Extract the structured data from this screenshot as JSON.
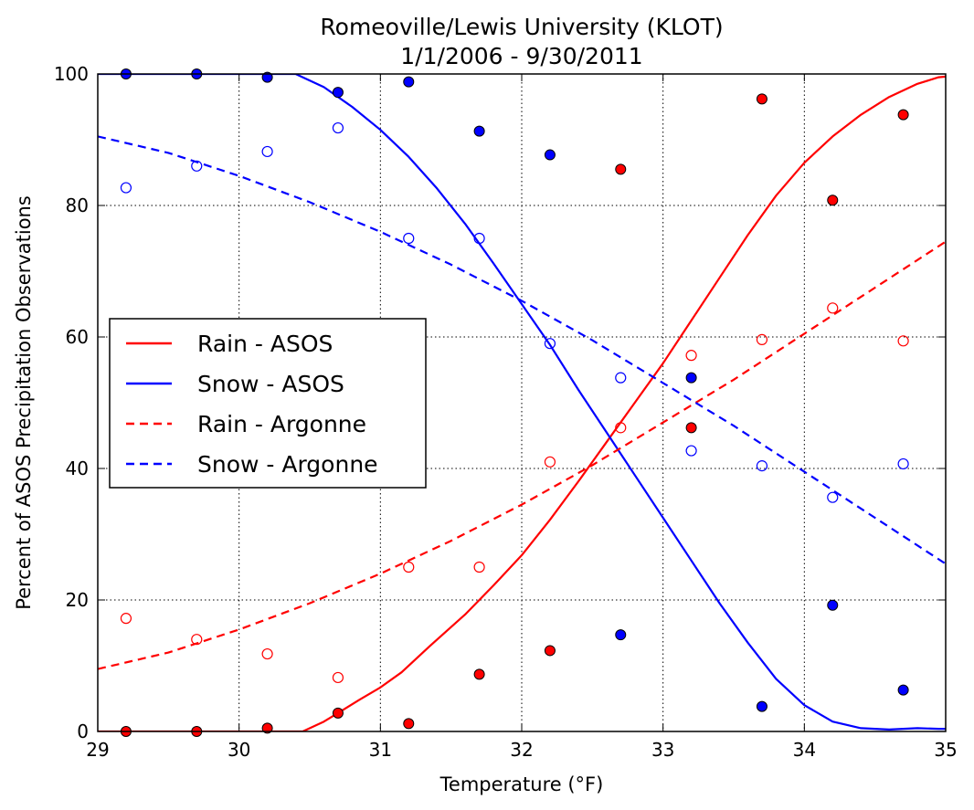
{
  "chart_data": {
    "type": "scatter",
    "title": "Romeoville/Lewis University (KLOT)",
    "subtitle": "1/1/2006 - 9/30/2011",
    "xlabel": "Temperature (°F)",
    "ylabel": "Percent of ASOS Precipitation Observations",
    "xlim": [
      29,
      35
    ],
    "ylim": [
      0,
      100
    ],
    "xticks": [
      29,
      30,
      31,
      32,
      33,
      34,
      35
    ],
    "yticks": [
      0,
      20,
      40,
      60,
      80,
      100
    ],
    "grid": true,
    "legend_position": "center-left",
    "lines": [
      {
        "name": "Rain - ASOS",
        "color": "#ff0000",
        "style": "solid",
        "x": [
          29.0,
          30.45,
          30.6,
          30.7,
          30.85,
          31.0,
          31.15,
          31.35,
          31.6,
          31.8,
          32.0,
          32.2,
          32.4,
          32.6,
          32.8,
          33.0,
          33.2,
          33.4,
          33.6,
          33.8,
          34.0,
          34.2,
          34.4,
          34.6,
          34.8,
          34.95,
          35.0
        ],
        "y": [
          0.0,
          0.0,
          1.5,
          2.8,
          4.8,
          6.7,
          9.0,
          13.0,
          17.8,
          22.2,
          26.8,
          32.2,
          38.0,
          44.0,
          50.0,
          56.0,
          62.5,
          69.0,
          75.5,
          81.5,
          86.5,
          90.5,
          93.8,
          96.5,
          98.5,
          99.5,
          99.6
        ]
      },
      {
        "name": "Snow - ASOS",
        "color": "#0000ff",
        "style": "solid",
        "x": [
          29.0,
          30.4,
          30.6,
          30.8,
          31.0,
          31.2,
          31.4,
          31.6,
          31.8,
          32.0,
          32.2,
          32.4,
          32.6,
          32.8,
          33.0,
          33.2,
          33.4,
          33.6,
          33.8,
          34.0,
          34.2,
          34.4,
          34.6,
          34.8,
          34.95,
          35.0
        ],
        "y": [
          100,
          100,
          98.0,
          95.0,
          91.5,
          87.4,
          82.6,
          77.2,
          71.2,
          65.0,
          58.8,
          52.0,
          45.5,
          39.0,
          32.5,
          26.0,
          19.5,
          13.5,
          8.0,
          4.0,
          1.5,
          0.5,
          0.3,
          0.5,
          0.4,
          0.4
        ]
      },
      {
        "name": "Rain - Argonne",
        "color": "#ff0000",
        "style": "dashed",
        "x": [
          29.0,
          29.5,
          30.0,
          30.5,
          31.0,
          31.5,
          32.0,
          32.5,
          33.0,
          33.5,
          34.0,
          34.5,
          35.0
        ],
        "y": [
          9.5,
          12.0,
          15.5,
          19.5,
          24.0,
          29.0,
          34.5,
          40.5,
          47.0,
          53.5,
          60.5,
          67.5,
          74.5
        ]
      },
      {
        "name": "Snow - Argonne",
        "color": "#0000ff",
        "style": "dashed",
        "x": [
          29.0,
          29.5,
          30.0,
          30.5,
          31.0,
          31.5,
          32.0,
          32.5,
          33.0,
          33.5,
          34.0,
          34.5,
          35.0
        ],
        "y": [
          90.5,
          88.0,
          84.5,
          80.5,
          76.0,
          71.0,
          65.5,
          59.5,
          53.0,
          46.5,
          39.5,
          32.5,
          25.5
        ]
      }
    ],
    "points": [
      {
        "group": "Rain - ASOS observed",
        "color": "#ff0000",
        "filled": true,
        "x": [
          29.2,
          29.7,
          30.2,
          30.7,
          31.2,
          31.7,
          32.2,
          32.7,
          33.2,
          33.7,
          34.2,
          34.7
        ],
        "y": [
          0.0,
          0.0,
          0.5,
          2.8,
          1.2,
          8.7,
          12.3,
          85.5,
          46.2,
          96.2,
          80.8,
          93.8
        ]
      },
      {
        "group": "Snow - ASOS observed",
        "color": "#0000ff",
        "filled": true,
        "x": [
          29.2,
          29.7,
          30.2,
          30.7,
          31.2,
          31.7,
          32.2,
          32.7,
          33.2,
          33.7,
          34.2,
          34.7
        ],
        "y": [
          100.0,
          100.0,
          99.5,
          97.2,
          98.8,
          91.3,
          87.7,
          14.7,
          53.8,
          3.8,
          19.2,
          6.3
        ]
      },
      {
        "group": "Rain - Argonne observed",
        "color": "#ff0000",
        "filled": false,
        "x": [
          29.2,
          29.7,
          30.2,
          30.7,
          31.2,
          31.7,
          32.2,
          32.7,
          33.2,
          33.7,
          34.2,
          34.7
        ],
        "y": [
          17.2,
          14.0,
          11.8,
          8.2,
          25.0,
          25.0,
          41.0,
          46.2,
          57.2,
          59.6,
          64.4,
          59.4
        ]
      },
      {
        "group": "Snow - Argonne observed",
        "color": "#0000ff",
        "filled": false,
        "x": [
          29.2,
          29.7,
          30.2,
          30.7,
          31.2,
          31.7,
          32.2,
          32.7,
          33.2,
          33.7,
          34.2,
          34.7
        ],
        "y": [
          82.7,
          86.0,
          88.2,
          91.8,
          75.0,
          75.0,
          59.0,
          53.8,
          42.7,
          40.4,
          35.6,
          40.7
        ]
      }
    ]
  }
}
